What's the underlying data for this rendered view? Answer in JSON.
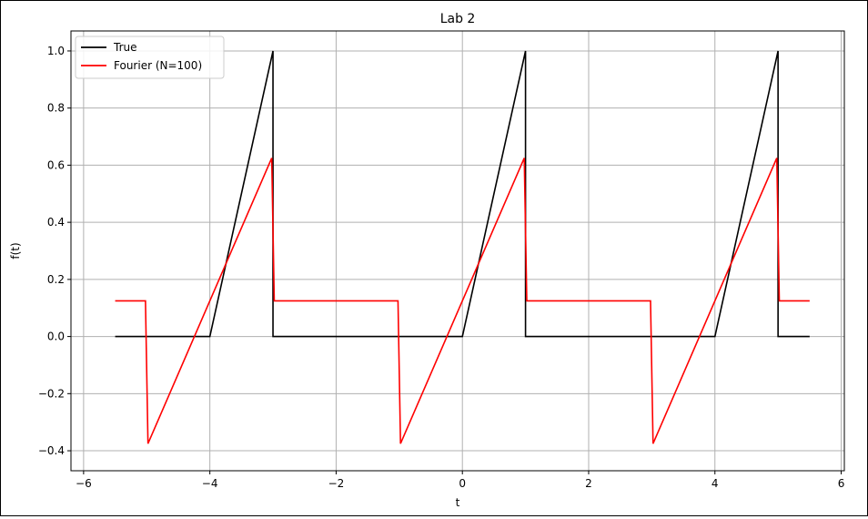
{
  "chart_data": {
    "type": "line",
    "title": "Lab 2",
    "xlabel": "t",
    "ylabel": "f(t)",
    "xlim": [
      -6.2,
      6.05
    ],
    "ylim": [
      -0.47,
      1.07
    ],
    "xticks": [
      -6,
      -4,
      -2,
      0,
      2,
      4,
      6
    ],
    "xtick_labels": [
      "−6",
      "−4",
      "−2",
      "0",
      "2",
      "4",
      "6"
    ],
    "yticks": [
      -0.4,
      -0.2,
      0.0,
      0.2,
      0.4,
      0.6,
      0.8,
      1.0
    ],
    "ytick_labels": [
      "−0.4",
      "−0.2",
      "0.0",
      "0.2",
      "0.4",
      "0.6",
      "0.8",
      "1.0"
    ],
    "grid": true,
    "legend_position": "upper-left",
    "series": [
      {
        "name": "True",
        "color": "#000000",
        "x": [
          -5.5,
          -4,
          -3,
          -3,
          -1,
          0,
          1,
          1,
          3,
          4,
          5,
          5,
          5.5
        ],
        "y": [
          0,
          0,
          1,
          0,
          0,
          0,
          1,
          0,
          0,
          0,
          1,
          0,
          0
        ]
      },
      {
        "name": "Fourier (N=100)",
        "color": "#ff0000",
        "x": [
          -5.5,
          -5.02,
          -4.98,
          -3.02,
          -2.98,
          -1.02,
          -0.98,
          0.98,
          1.02,
          2.98,
          3.02,
          4.98,
          5.02,
          5.5
        ],
        "y": [
          0.125,
          0.125,
          -0.375,
          0.625,
          0.125,
          0.125,
          -0.375,
          0.625,
          0.125,
          0.125,
          -0.375,
          0.625,
          0.125,
          0.125
        ]
      }
    ]
  }
}
